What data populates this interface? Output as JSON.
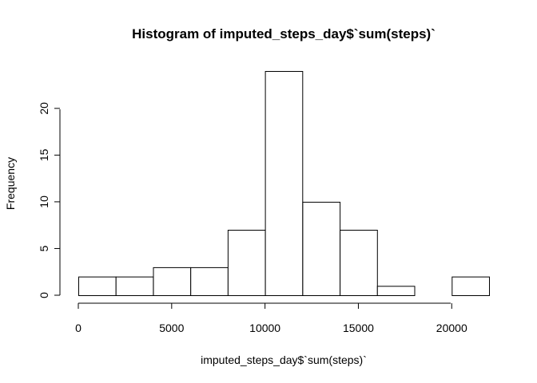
{
  "chart_data": {
    "type": "bar",
    "title": "Histogram of imputed_steps_day$`sum(steps)`",
    "xlabel": "imputed_steps_day$`sum(steps)`",
    "ylabel": "Frequency",
    "bins": [
      {
        "start": 0,
        "end": 2000,
        "count": 2
      },
      {
        "start": 2000,
        "end": 4000,
        "count": 2
      },
      {
        "start": 4000,
        "end": 6000,
        "count": 3
      },
      {
        "start": 6000,
        "end": 8000,
        "count": 3
      },
      {
        "start": 8000,
        "end": 10000,
        "count": 7
      },
      {
        "start": 10000,
        "end": 12000,
        "count": 24
      },
      {
        "start": 12000,
        "end": 14000,
        "count": 10
      },
      {
        "start": 14000,
        "end": 16000,
        "count": 7
      },
      {
        "start": 16000,
        "end": 18000,
        "count": 1
      },
      {
        "start": 18000,
        "end": 20000,
        "count": 0
      },
      {
        "start": 20000,
        "end": 22000,
        "count": 2
      }
    ],
    "xlim": [
      0,
      22000
    ],
    "ylim": [
      0,
      24
    ],
    "xticks": [
      "0",
      "5000",
      "10000",
      "15000",
      "20000"
    ],
    "yticks": [
      "0",
      "5",
      "10",
      "15",
      "20"
    ],
    "grid": false
  }
}
